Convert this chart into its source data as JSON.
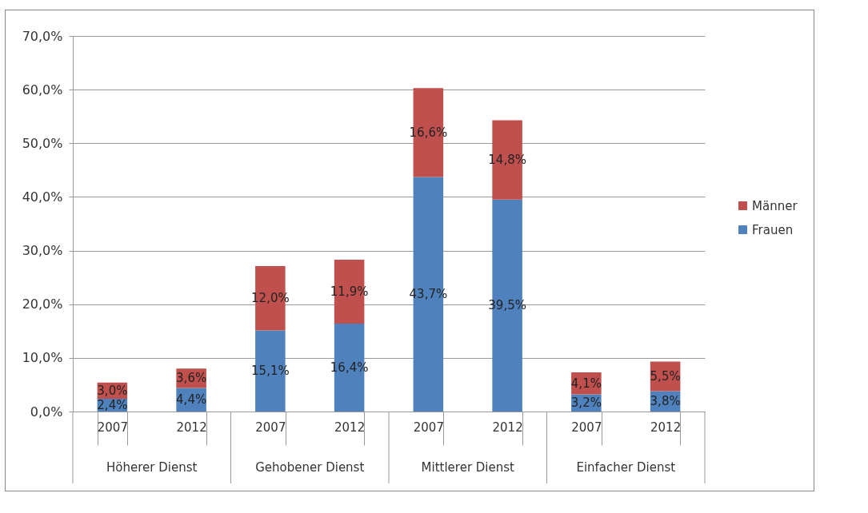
{
  "chart_data": {
    "type": "bar",
    "stacked": true,
    "categories": [
      "2007",
      "2012",
      "2007",
      "2012",
      "2007",
      "2012",
      "2007",
      "2012"
    ],
    "annotations": [
      "Höherer Dienst",
      "Gehobener Dienst",
      "Mittlerer Dienst",
      "Einfacher Dienst"
    ],
    "series": [
      {
        "name": "Frauen",
        "color": "#4f81bd",
        "values": [
          2.4,
          4.4,
          15.1,
          16.4,
          43.7,
          39.5,
          3.2,
          3.8
        ],
        "value_labels": [
          "2,4%",
          "4,4%",
          "15,1%",
          "16,4%",
          "43,7%",
          "39,5%",
          "3,2%",
          "3,8%"
        ]
      },
      {
        "name": "Männer",
        "color": "#c0504d",
        "values": [
          3.0,
          3.6,
          12.0,
          11.9,
          16.6,
          14.8,
          4.1,
          5.5
        ],
        "value_labels": [
          "3,0%",
          "3,6%",
          "12,0%",
          "11,9%",
          "16,6%",
          "14,8%",
          "4,1%",
          "5,5%"
        ]
      }
    ],
    "ylim": [
      0,
      70
    ],
    "yticks": [
      {
        "value": 0,
        "label": "0,0%"
      },
      {
        "value": 10,
        "label": "10,0%"
      },
      {
        "value": 20,
        "label": "20,0%"
      },
      {
        "value": 30,
        "label": "30,0%"
      },
      {
        "value": 40,
        "label": "40,0%"
      },
      {
        "value": 50,
        "label": "50,0%"
      },
      {
        "value": 60,
        "label": "60,0%"
      },
      {
        "value": 70,
        "label": "70,0%"
      }
    ],
    "grid": "y",
    "legend": "right"
  }
}
